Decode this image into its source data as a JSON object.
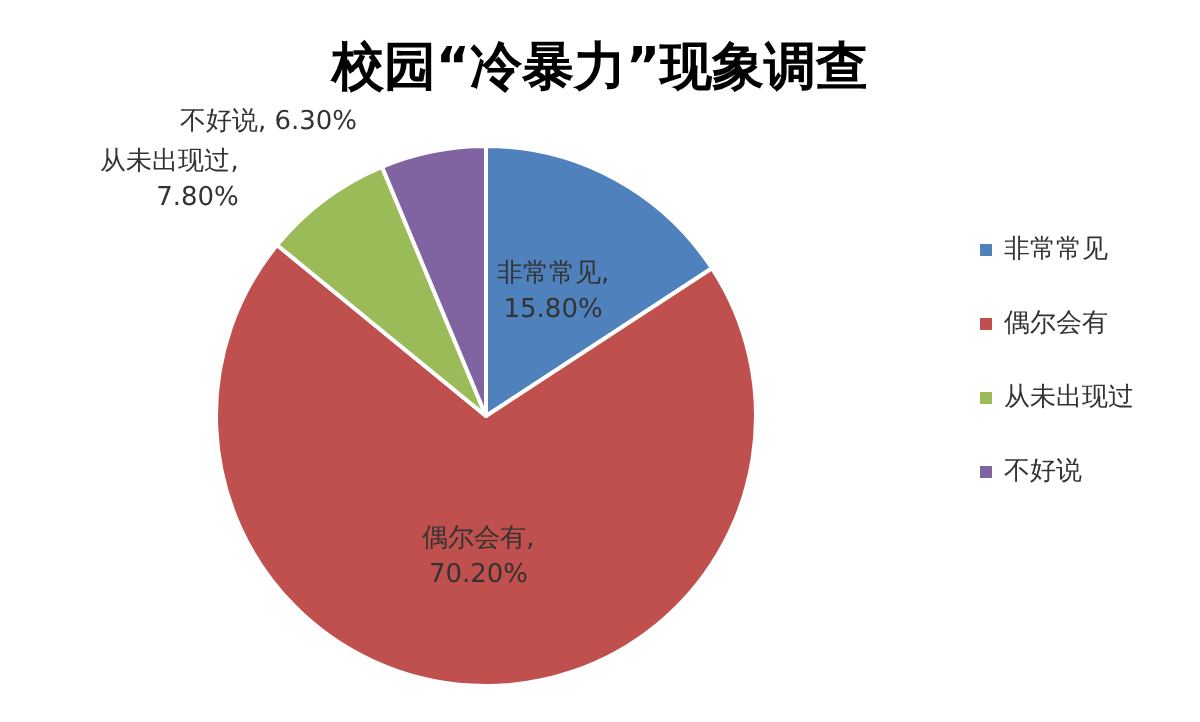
{
  "chart_data": {
    "type": "pie",
    "title": "校园“冷暴力”现象调查",
    "categories": [
      "非常常见",
      "偶尔会有",
      "从未出现过",
      "不好说"
    ],
    "values": [
      15.8,
      70.2,
      7.8,
      6.3
    ],
    "value_labels": [
      ",\n15.80%",
      ",\n70.20%",
      ",\n7.80%",
      ", 6.30%"
    ],
    "colors": [
      "#4f81bd",
      "#c0504d",
      "#9bbb59",
      "#8064a2"
    ],
    "legend": "right"
  }
}
